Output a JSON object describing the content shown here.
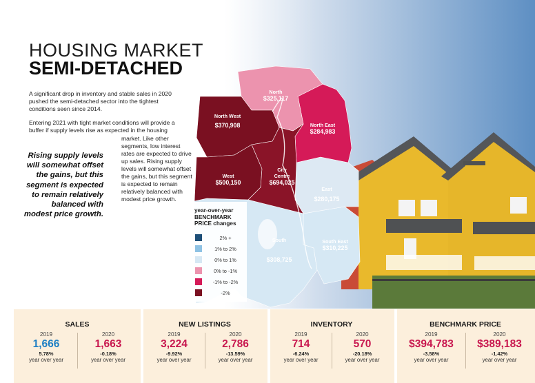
{
  "title": {
    "line1": "HOUSING MARKET",
    "line2": "SEMI-DETACHED"
  },
  "paragraphs": [
    "A significant drop in inventory and stable sales in 2020 pushed the semi-detached sector into the tightest conditions seen since 2014.",
    "Entering 2021 with tight market conditions will provide a buffer if supply levels rise as expected in the housing",
    "market. Like other segments, low interest rates are expected to drive up sales. Rising supply levels will somewhat offset the gains, but this segment is expected to remain relatively balanced with modest price growth."
  ],
  "pull_quote": "Rising supply levels will somewhat offset the gains, but this segment is expected to remain relatively balanced with modest price growth.",
  "legend": {
    "title_line1": "year-over-year",
    "title_line2": "BENCHMARK",
    "title_line3": "PRICE changes",
    "items": [
      {
        "label": "2% +",
        "color": "#1d4f78"
      },
      {
        "label": "1% to 2%",
        "color": "#8ec2e4"
      },
      {
        "label": "0% to 1%",
        "color": "#d6e8f4"
      },
      {
        "label": "0% to -1%",
        "color": "#ec93ae"
      },
      {
        "label": "-1% to -2%",
        "color": "#d51a58"
      },
      {
        "label": "-2%",
        "color": "#7a1021"
      }
    ]
  },
  "regions": [
    {
      "name": "North",
      "value": "$325,117"
    },
    {
      "name": "North West",
      "value": "$370,908"
    },
    {
      "name": "North East",
      "value": "$284,983"
    },
    {
      "name": "West",
      "value": "$500,150"
    },
    {
      "name": "City Centre",
      "value": "$694,025"
    },
    {
      "name": "East",
      "value": "$280,175"
    },
    {
      "name": "South",
      "value": "$308,725"
    },
    {
      "name": "South East",
      "value": "$310,225"
    }
  ],
  "stats": [
    {
      "title": "SALES",
      "y1": {
        "year": "2019",
        "value": "1,666",
        "change": "5.78%",
        "note": "year over year",
        "color": "#1d7fc4"
      },
      "y2": {
        "year": "2020",
        "value": "1,663",
        "change": "-0.18%",
        "note": "year over year",
        "color": "#c8174f"
      }
    },
    {
      "title": "NEW LISTINGS",
      "y1": {
        "year": "2019",
        "value": "3,224",
        "change": "-9.92%",
        "note": "year over year",
        "color": "#c8174f"
      },
      "y2": {
        "year": "2020",
        "value": "2,786",
        "change": "-13.59%",
        "note": "year over year",
        "color": "#c8174f"
      }
    },
    {
      "title": "INVENTORY",
      "y1": {
        "year": "2019",
        "value": "714",
        "change": "-6.24%",
        "note": "year over year",
        "color": "#c8174f"
      },
      "y2": {
        "year": "2020",
        "value": "570",
        "change": "-20.18%",
        "note": "year over year",
        "color": "#c8174f"
      }
    },
    {
      "title": "BENCHMARK PRICE",
      "y1": {
        "year": "2019",
        "value": "$394,783",
        "change": "-3.58%",
        "note": "year over year",
        "color": "#c8174f"
      },
      "y2": {
        "year": "2020",
        "value": "$389,183",
        "change": "-1.42%",
        "note": "year over year",
        "color": "#c8174f"
      }
    }
  ]
}
